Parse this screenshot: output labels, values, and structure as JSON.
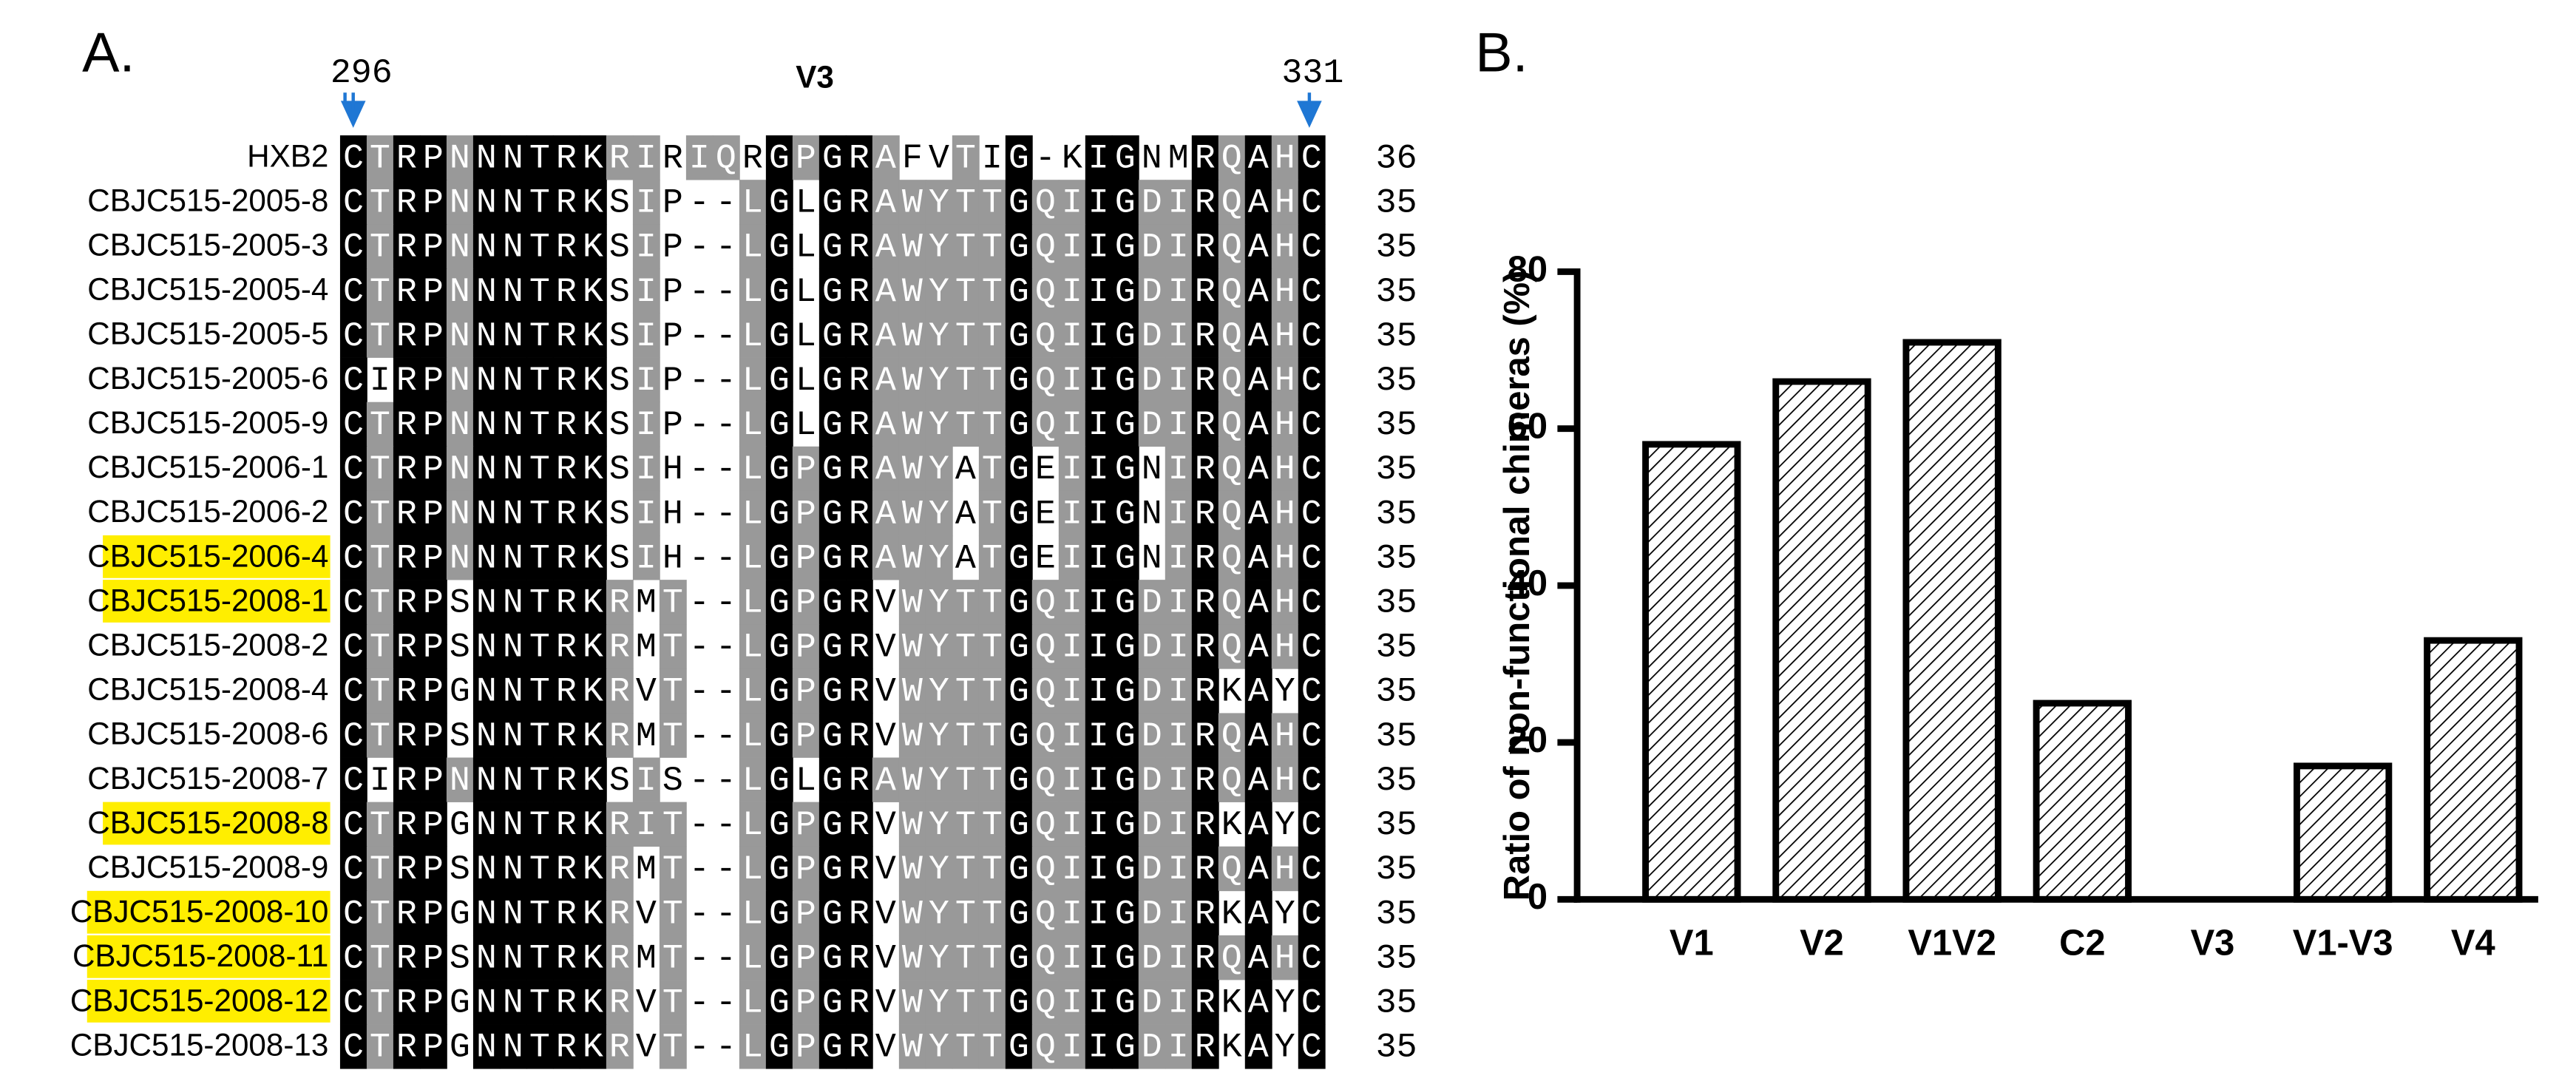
{
  "panel_a": {
    "label": "A.",
    "region": "V3",
    "start": "296",
    "end": "331",
    "rows": [
      {
        "name": "HXB2",
        "sequence": "CTRPNNNTRKRIRIQRGPGRAFVTIG-KIGNMRQAHC",
        "length": 36,
        "highlight": false
      },
      {
        "name": "CBJC515-2005-8",
        "sequence": "CTRPNNNTRKSIP--LGLGRAWYTTGQIIGDIRQAHC",
        "length": 35,
        "highlight": false
      },
      {
        "name": "CBJC515-2005-3",
        "sequence": "CTRPNNNTRKSIP--LGLGRAWYTTGQIIGDIRQAHC",
        "length": 35,
        "highlight": false
      },
      {
        "name": "CBJC515-2005-4",
        "sequence": "CTRPNNNTRKSIP--LGLGRAWYTTGQIIGDIRQAHC",
        "length": 35,
        "highlight": false
      },
      {
        "name": "CBJC515-2005-5",
        "sequence": "CTRPNNNTRKSIP--LGLGRAWYTTGQIIGDIRQAHC",
        "length": 35,
        "highlight": false
      },
      {
        "name": "CBJC515-2005-6",
        "sequence": "CIRPNNNTRKSIP--LGLGRAWYTTGQIIGDIRQAHC",
        "length": 35,
        "highlight": false
      },
      {
        "name": "CBJC515-2005-9",
        "sequence": "CTRPNNNTRKSIP--LGLGRAWYTTGQIIGDIRQAHC",
        "length": 35,
        "highlight": false
      },
      {
        "name": "CBJC515-2006-1",
        "sequence": "CTRPNNNTRKSIH--LGPGRAWYATGEIIGNIRQAHC",
        "length": 35,
        "highlight": false
      },
      {
        "name": "CBJC515-2006-2",
        "sequence": "CTRPNNNTRKSIH--LGPGRAWYATGEIIGNIRQAHC",
        "length": 35,
        "highlight": false
      },
      {
        "name": "CBJC515-2006-4",
        "sequence": "CTRPNNNTRKSIH--LGPGRAWYATGEIIGNIRQAHC",
        "length": 35,
        "highlight": true
      },
      {
        "name": "CBJC515-2008-1",
        "sequence": "CTRPSNNTRKRMT--LGPGRVWYTTGQIIGDIRQAHC",
        "length": 35,
        "highlight": true
      },
      {
        "name": "CBJC515-2008-2",
        "sequence": "CTRPSNNTRKRMT--LGPGRVWYTTGQIIGDIRQAHC",
        "length": 35,
        "highlight": false
      },
      {
        "name": "CBJC515-2008-4",
        "sequence": "CTRPGNNTRKRVT--LGPGRVWYTTGQIIGDIRKAYC",
        "length": 35,
        "highlight": false
      },
      {
        "name": "CBJC515-2008-6",
        "sequence": "CTRPSNNTRKRMT--LGPGRVWYTTGQIIGDIRQAHC",
        "length": 35,
        "highlight": false
      },
      {
        "name": "CBJC515-2008-7",
        "sequence": "CIRPNNNTRKSIS--LGLGRAWYTTGQIIGDIRQAHC",
        "length": 35,
        "highlight": false
      },
      {
        "name": "CBJC515-2008-8",
        "sequence": "CTRPGNNTRKRIT--LGPGRVWYTTGQIIGDIRKAYC",
        "length": 35,
        "highlight": true
      },
      {
        "name": "CBJC515-2008-9",
        "sequence": "CTRPSNNTRKRMT--LGPGRVWYTTGQIIGDIRQAHC",
        "length": 35,
        "highlight": false
      },
      {
        "name": "CBJC515-2008-10",
        "sequence": "CTRPGNNTRKRVT--LGPGRVWYTTGQIIGDIRKAYC",
        "length": 35,
        "highlight": true
      },
      {
        "name": "CBJC515-2008-11",
        "sequence": "CTRPSNNTRKRMT--LGPGRVWYTTGQIIGDIRQAHC",
        "length": 35,
        "highlight": true
      },
      {
        "name": "CBJC515-2008-12",
        "sequence": "CTRPGNNTRKRVT--LGPGRVWYTTGQIIGDIRKAYC",
        "length": 35,
        "highlight": true
      },
      {
        "name": "CBJC515-2008-13",
        "sequence": "CTRPGNNTRKRVT--LGPGRVWYTTGQIIGDIRKAYC",
        "length": 35,
        "highlight": false
      }
    ]
  },
  "chart_data": {
    "type": "bar",
    "panel_label": "B.",
    "ylabel": "Ratio of non-functional chimeras (%)",
    "categories": [
      "V1",
      "V2",
      "V1V2",
      "C2",
      "V3",
      "V1-V3",
      "V4"
    ],
    "values": [
      58,
      66,
      71,
      25,
      0,
      17,
      33
    ],
    "color": "#000000",
    "ylim": [
      0,
      80
    ],
    "yticks": [
      0,
      20,
      40,
      60,
      80
    ],
    "grid": false
  }
}
